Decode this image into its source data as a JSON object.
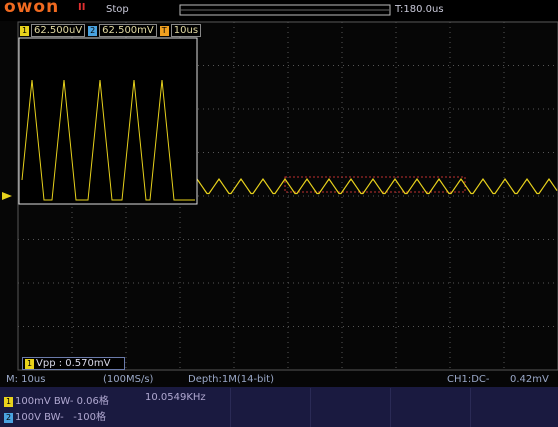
{
  "header": {
    "brand": "owon",
    "state": "Stop",
    "trigger_time": "T:180.0us"
  },
  "scale_bar": [
    {
      "badge": "1",
      "value": "62.500uV"
    },
    {
      "badge": "2",
      "value": "62.500mV"
    },
    {
      "badge": "T",
      "value": "10us"
    }
  ],
  "measurement": {
    "badge": "1",
    "text": "Vpp : 0.570mV"
  },
  "status": {
    "timebase": "M: 10us",
    "sample_rate": "(100MS/s)",
    "depth": "Depth:1M(14-bit)",
    "trigger": "CH1:DC-",
    "trigger_level": "0.42mV"
  },
  "channels": [
    {
      "badge": "1",
      "text": "100mV BW-",
      "offset": "0.06格",
      "frequency": "10.0549KHz"
    },
    {
      "badge": "2",
      "text": "100V BW-",
      "offset": "-100格"
    }
  ]
}
